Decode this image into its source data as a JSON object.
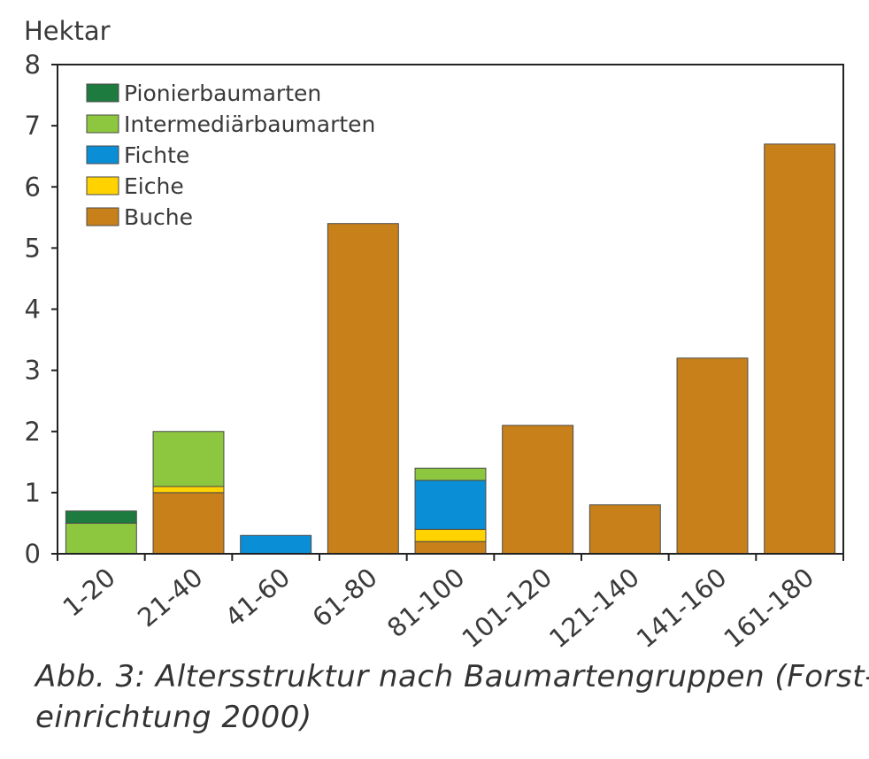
{
  "chart_data": {
    "type": "bar",
    "stacked": true,
    "ylabel": "Hektar",
    "xlabel": "",
    "ylim": [
      0,
      8
    ],
    "yticks": [
      0,
      1,
      2,
      3,
      4,
      5,
      6,
      7,
      8
    ],
    "categories": [
      "1-20",
      "21-40",
      "41-60",
      "61-80",
      "81-100",
      "101-120",
      "121-140",
      "141-160",
      "161-180"
    ],
    "series": [
      {
        "name": "Buche",
        "color": "#c8811a",
        "values": [
          0,
          1.0,
          0,
          5.4,
          0.2,
          2.1,
          0.8,
          3.2,
          6.7
        ]
      },
      {
        "name": "Eiche",
        "color": "#ffd200",
        "values": [
          0,
          0.1,
          0,
          0,
          0.2,
          0,
          0,
          0,
          0
        ]
      },
      {
        "name": "Fichte",
        "color": "#0a8fd6",
        "values": [
          0,
          0,
          0.3,
          0,
          0.8,
          0,
          0,
          0,
          0
        ]
      },
      {
        "name": "Intermediärbaumarten",
        "color": "#8dc63f",
        "values": [
          0.5,
          0.9,
          0,
          0,
          0.2,
          0,
          0,
          0,
          0
        ]
      },
      {
        "name": "Pionierbaumarten",
        "color": "#1d7b40",
        "values": [
          0.2,
          0,
          0,
          0,
          0,
          0,
          0,
          0,
          0
        ]
      }
    ],
    "legend": {
      "position": "top-left",
      "order": [
        "Pionierbaumarten",
        "Intermediärbaumarten",
        "Fichte",
        "Eiche",
        "Buche"
      ]
    },
    "grid": false
  },
  "caption": {
    "line1": "Abb. 3: Altersstruktur nach Baumartengruppen (Forst-",
    "line2": "einrichtung 2000)"
  }
}
